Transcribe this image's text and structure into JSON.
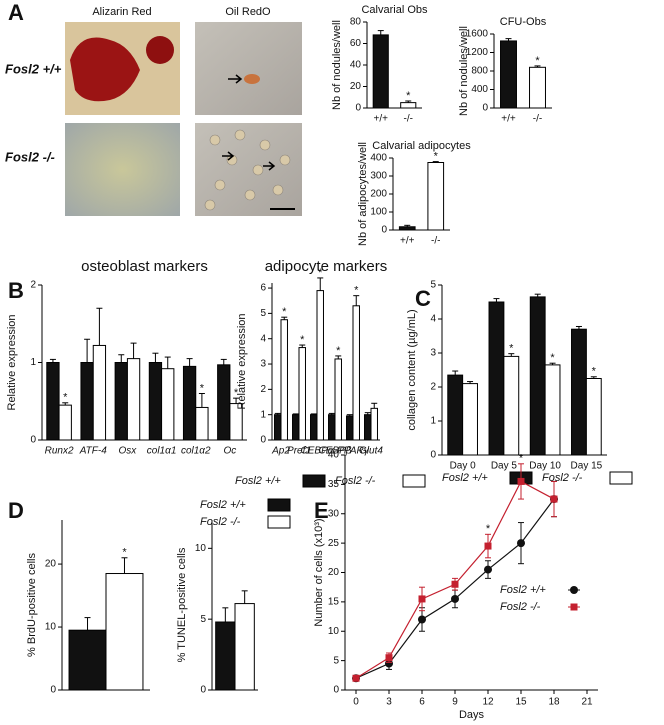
{
  "panel_labels": [
    "A",
    "B",
    "C",
    "D",
    "E"
  ],
  "images": {
    "columns": [
      "Alizarin Red",
      "Oil RedO"
    ],
    "rows": [
      "Fosl2 +/+",
      "Fosl2 -/-"
    ]
  },
  "chart_data": [
    {
      "type": "bar",
      "title": "Calvarial Obs",
      "categories": [
        "+/+",
        "-/-"
      ],
      "values": [
        68,
        5
      ],
      "errors": [
        4,
        1.5
      ],
      "colors": [
        "#111111",
        "#ffffff"
      ],
      "significance": [
        null,
        "*"
      ],
      "ylabel": "Nb of nodules/well",
      "ylim": [
        0,
        80
      ],
      "yticks": [
        0,
        20,
        40,
        60,
        80
      ]
    },
    {
      "type": "bar",
      "title": "CFU-Obs",
      "categories": [
        "+/+",
        "-/-"
      ],
      "values": [
        1450,
        880
      ],
      "errors": [
        50,
        30
      ],
      "colors": [
        "#111111",
        "#ffffff"
      ],
      "significance": [
        null,
        "*"
      ],
      "ylabel": "Nb of nodules/well",
      "ylim": [
        0,
        1600
      ],
      "yticks": [
        0,
        400,
        800,
        1200,
        1600
      ]
    },
    {
      "type": "bar",
      "title": "Calvarial adipocytes",
      "categories": [
        "+/+",
        "-/-"
      ],
      "values": [
        18,
        375
      ],
      "errors": [
        8,
        5
      ],
      "colors": [
        "#111111",
        "#ffffff"
      ],
      "significance": [
        null,
        "*"
      ],
      "ylabel": "Nb of adipocytes/well",
      "ylim": [
        0,
        400
      ],
      "yticks": [
        0,
        100,
        200,
        300,
        400
      ]
    },
    {
      "type": "bar",
      "title": "osteoblast markers",
      "categories": [
        "Runx2",
        "ATF-4",
        "Osx",
        "col1α1",
        "col1α2",
        "Oc"
      ],
      "ylabel": "Relative expression",
      "ylim": [
        0,
        2
      ],
      "yticks": [
        0,
        1,
        2
      ],
      "legend": "bottom",
      "series": [
        {
          "name": "Fosl2 +/+",
          "color": "#111111",
          "values": [
            1,
            1,
            1,
            1,
            0.95,
            0.97
          ],
          "errors": [
            0.04,
            0.3,
            0.1,
            0.12,
            0.1,
            0.07
          ]
        },
        {
          "name": "Fosl2 -/-",
          "color": "#ffffff",
          "values": [
            0.45,
            1.22,
            1.05,
            0.92,
            0.42,
            0.47
          ],
          "errors": [
            0.03,
            0.48,
            0.2,
            0.15,
            0.18,
            0.07
          ],
          "significance": [
            "*",
            null,
            null,
            null,
            "*",
            "*"
          ]
        }
      ]
    },
    {
      "type": "bar",
      "title": "adipocyte markers",
      "categories": [
        "Ap2",
        "Pref1",
        "CEBPα",
        "CEBPβ",
        "PPARγ",
        "Glut4"
      ],
      "ylabel": "Relative expression",
      "ylim": [
        0,
        6.2
      ],
      "yticks": [
        0,
        1,
        2,
        3,
        4,
        5,
        6
      ],
      "series": [
        {
          "color": "#111111",
          "values": [
            1,
            1,
            1,
            1,
            0.95,
            1
          ],
          "errors": [
            0.05,
            0.03,
            0.03,
            0.05,
            0.05,
            0.08
          ]
        },
        {
          "color": "#ffffff",
          "values": [
            4.75,
            3.65,
            5.9,
            3.2,
            5.3,
            1.25
          ],
          "errors": [
            0.1,
            0.1,
            0.5,
            0.12,
            0.4,
            0.2
          ],
          "significance": [
            "*",
            "*",
            "*",
            "*",
            "*",
            null
          ]
        }
      ]
    },
    {
      "type": "bar",
      "categories": [
        "Day 0",
        "Day 5",
        "Day 10",
        "Day 15"
      ],
      "ylabel": "collagen content (µg/mL)",
      "ylim": [
        0,
        5
      ],
      "yticks": [
        0,
        1,
        2,
        3,
        4,
        5
      ],
      "legend": "bottom",
      "series": [
        {
          "name": "Fosl2 +/+",
          "color": "#111111",
          "values": [
            2.35,
            4.5,
            4.65,
            3.7
          ],
          "errors": [
            0.12,
            0.1,
            0.08,
            0.08
          ]
        },
        {
          "name": "Fosl2 -/-",
          "color": "#ffffff",
          "values": [
            2.1,
            2.9,
            2.65,
            2.25
          ],
          "errors": [
            0.06,
            0.08,
            0.05,
            0.05
          ],
          "significance": [
            null,
            "*",
            "*",
            "*"
          ]
        }
      ]
    },
    {
      "type": "bar",
      "ylabel": "% BrdU-positive cells",
      "ylim": [
        0,
        27
      ],
      "yticks": [
        0,
        10,
        20
      ],
      "series": [
        {
          "color": "#111111",
          "values": [
            9.5
          ],
          "errors": [
            2
          ]
        },
        {
          "color": "#ffffff",
          "values": [
            18.5
          ],
          "errors": [
            2.5
          ],
          "significance": [
            "*"
          ]
        }
      ]
    },
    {
      "type": "bar",
      "ylabel": "% TUNEL-positive cells",
      "ylim": [
        0,
        12
      ],
      "yticks": [
        0,
        5,
        10
      ],
      "legend": "top",
      "series": [
        {
          "name": "Fosl2 +/+",
          "color": "#111111",
          "values": [
            4.8
          ],
          "errors": [
            1
          ]
        },
        {
          "name": "Fosl2 -/-",
          "color": "#ffffff",
          "values": [
            6.1
          ],
          "errors": [
            0.9
          ]
        }
      ]
    },
    {
      "type": "line",
      "x": [
        0,
        3,
        6,
        9,
        12,
        15,
        18
      ],
      "xlabel": "Days",
      "ylabel": "Number of cells (x10³)",
      "xlim": [
        -1,
        22
      ],
      "xticks": [
        0,
        3,
        6,
        9,
        12,
        15,
        18,
        21
      ],
      "ylim": [
        0,
        40
      ],
      "yticks": [
        0,
        5,
        10,
        15,
        20,
        25,
        30,
        35,
        40
      ],
      "legend": "right",
      "series": [
        {
          "name": "Fosl2 +/+",
          "color": "#111111",
          "marker": "circle",
          "values": [
            2,
            4.5,
            12,
            15.5,
            20.5,
            25,
            32.5
          ],
          "errors": [
            0.3,
            1,
            2,
            1.5,
            1.5,
            3.5,
            3
          ]
        },
        {
          "name": "Fosl2 -/-",
          "color": "#c4202f",
          "marker": "square",
          "values": [
            2,
            5.5,
            15.5,
            18,
            24.5,
            35.5,
            32.5
          ],
          "errors": [
            0.3,
            0.8,
            2,
            1,
            2,
            3,
            3
          ],
          "significance": [
            null,
            null,
            null,
            null,
            "*",
            "*",
            null
          ]
        }
      ]
    }
  ]
}
